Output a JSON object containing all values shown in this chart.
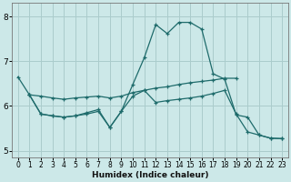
{
  "xlabel": "Humidex (Indice chaleur)",
  "bg_color": "#cce8e8",
  "grid_color": "#aacccc",
  "line_color": "#1e6b6b",
  "xlim": [
    -0.5,
    23.5
  ],
  "ylim": [
    4.85,
    8.3
  ],
  "yticks": [
    5,
    6,
    7,
    8
  ],
  "xticks": [
    0,
    1,
    2,
    3,
    4,
    5,
    6,
    7,
    8,
    9,
    10,
    11,
    12,
    13,
    14,
    15,
    16,
    17,
    18,
    19,
    20,
    21,
    22,
    23
  ],
  "line1_x": [
    0,
    1,
    2,
    3,
    4,
    5,
    6,
    7,
    8,
    9,
    10,
    11,
    12,
    13,
    14,
    15,
    16,
    17,
    18,
    19,
    20,
    21,
    22,
    23
  ],
  "line1_y": [
    6.65,
    6.25,
    5.82,
    5.78,
    5.75,
    5.78,
    5.82,
    5.88,
    5.52,
    5.88,
    6.48,
    7.08,
    7.82,
    7.62,
    7.87,
    7.87,
    7.72,
    6.72,
    6.6,
    5.8,
    5.75,
    5.35,
    5.28,
    5.27
  ],
  "line2_x": [
    1,
    2,
    3,
    4,
    5,
    6,
    7,
    8,
    9,
    10,
    11,
    12,
    13,
    14,
    15,
    16,
    17,
    18,
    19
  ],
  "line2_y": [
    6.25,
    6.22,
    6.18,
    6.15,
    6.18,
    6.2,
    6.22,
    6.18,
    6.22,
    6.3,
    6.35,
    6.4,
    6.43,
    6.48,
    6.52,
    6.55,
    6.58,
    6.62,
    6.62
  ],
  "line3_x": [
    1,
    2,
    3,
    4,
    5,
    6,
    7,
    8,
    9,
    10,
    11,
    12,
    13,
    14,
    15,
    16,
    17,
    18,
    19,
    20,
    21,
    22,
    23
  ],
  "line3_y": [
    6.25,
    5.82,
    5.78,
    5.75,
    5.78,
    5.85,
    5.92,
    5.52,
    5.88,
    6.22,
    6.35,
    6.08,
    6.12,
    6.15,
    6.18,
    6.22,
    6.28,
    6.35,
    5.82,
    5.42,
    5.35,
    5.28,
    5.27
  ]
}
